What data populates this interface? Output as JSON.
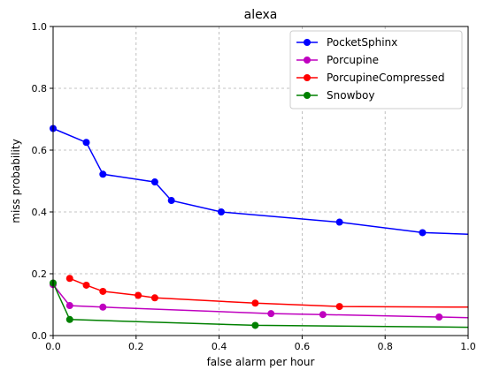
{
  "chart_data": {
    "type": "line",
    "title": "alexa",
    "xlabel": "false alarm per hour",
    "ylabel": "miss probability",
    "xlim": [
      0,
      1
    ],
    "ylim": [
      0,
      1
    ],
    "xticks": [
      "0.0",
      "0.2",
      "0.4",
      "0.6",
      "0.8",
      "1.0"
    ],
    "yticks": [
      "0.0",
      "0.2",
      "0.4",
      "0.6",
      "0.8",
      "1.0"
    ],
    "grid": true,
    "legend_position": "top-right",
    "series": [
      {
        "name": "PocketSphinx",
        "color": "#0000ff",
        "x": [
          0.0,
          0.08,
          0.12,
          0.245,
          0.285,
          0.405,
          0.69,
          0.89,
          1.0
        ],
        "y": [
          0.67,
          0.625,
          0.522,
          0.497,
          0.437,
          0.4,
          0.367,
          0.333,
          0.328
        ],
        "markers": [
          true,
          true,
          true,
          true,
          true,
          true,
          true,
          true,
          false
        ]
      },
      {
        "name": "Porcupine",
        "color": "#bf00bf",
        "x": [
          0.0,
          0.04,
          0.12,
          0.525,
          0.65,
          0.93,
          1.0
        ],
        "y": [
          0.165,
          0.097,
          0.092,
          0.071,
          0.068,
          0.06,
          0.058
        ],
        "markers": [
          true,
          true,
          true,
          true,
          true,
          true,
          false
        ]
      },
      {
        "name": "PorcupineCompressed",
        "color": "#ff0000",
        "x": [
          0.04,
          0.08,
          0.12,
          0.205,
          0.245,
          0.487,
          0.69,
          1.0
        ],
        "y": [
          0.185,
          0.163,
          0.143,
          0.13,
          0.122,
          0.105,
          0.094,
          0.092
        ],
        "markers": [
          true,
          true,
          true,
          true,
          true,
          true,
          true,
          false
        ]
      },
      {
        "name": "Snowboy",
        "color": "#008000",
        "x": [
          0.0,
          0.04,
          0.487,
          1.0
        ],
        "y": [
          0.17,
          0.052,
          0.033,
          0.027
        ],
        "markers": [
          true,
          true,
          true,
          false
        ]
      }
    ]
  }
}
